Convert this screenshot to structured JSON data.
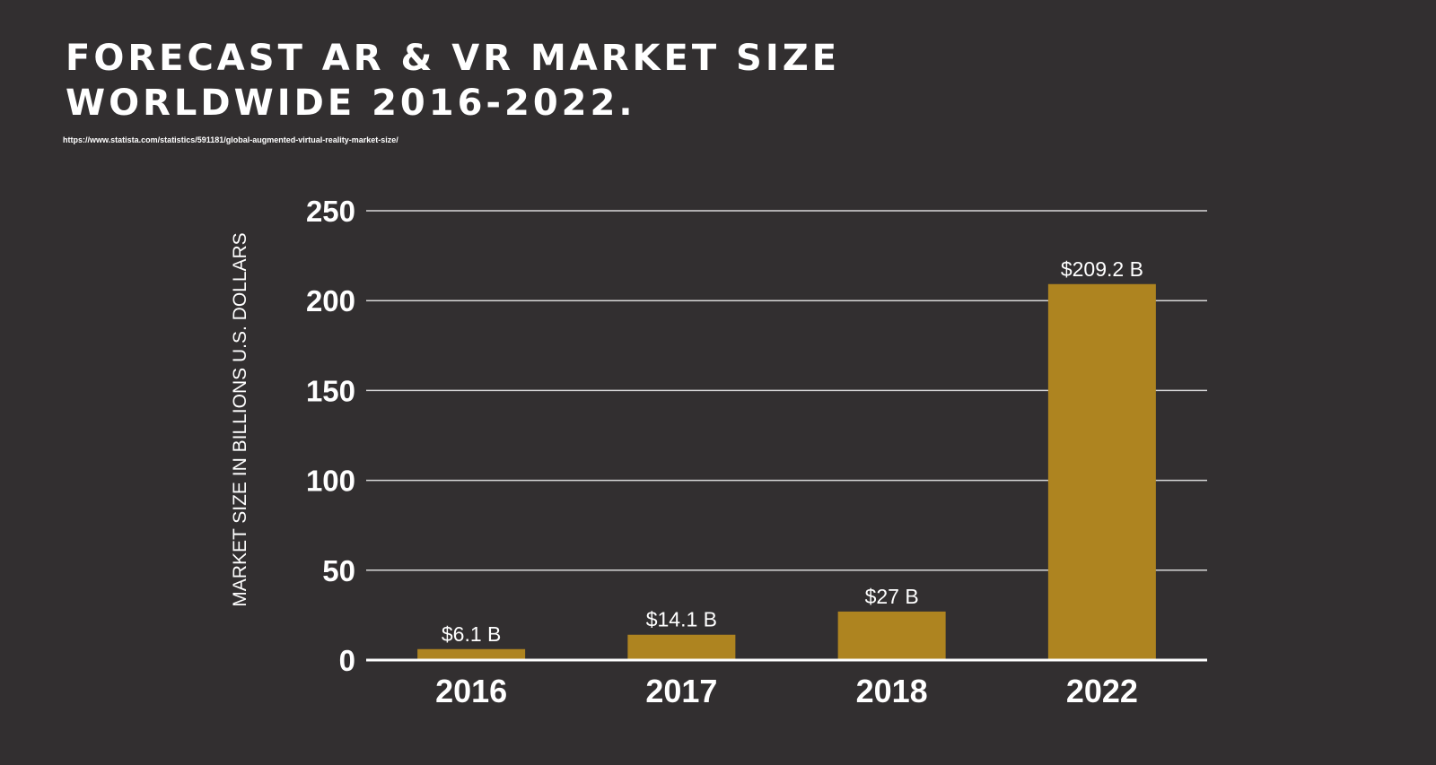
{
  "header": {
    "title_line1": "FORECAST AR & VR MARKET SIZE",
    "title_line2": "WORLDWIDE 2016-2022.",
    "source": "https://www.statista.com/statistics/591181/global-augmented-virtual-reality-market-size/"
  },
  "colors": {
    "background": "#322f30",
    "bar": "#ae8420",
    "text": "#ffffff",
    "grid": "#d9d9d9"
  },
  "chart_data": {
    "type": "bar",
    "title": "FORECAST AR & VR MARKET SIZE WORLDWIDE 2016-2022.",
    "xlabel": "",
    "ylabel": "MARKET SIZE IN BILLIONS U.S. DOLLARS",
    "categories": [
      "2016",
      "2017",
      "2018",
      "2022"
    ],
    "values": [
      6.1,
      14.1,
      27,
      209.2
    ],
    "data_labels": [
      "$6.1 B",
      "$14.1 B",
      "$27 B",
      "$209.2 B"
    ],
    "ylim": [
      0,
      250
    ],
    "yticks": [
      "0",
      "50",
      "100",
      "150",
      "200",
      "250"
    ],
    "grid": true,
    "legend": "none"
  }
}
